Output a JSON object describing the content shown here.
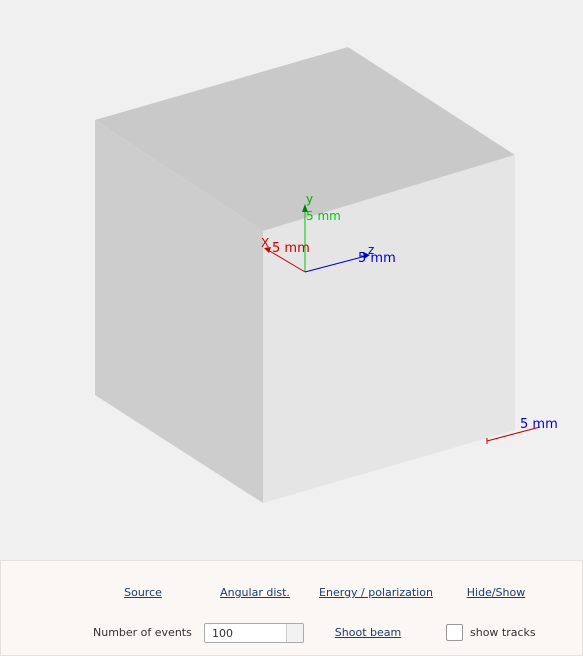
{
  "viewer": {
    "axes": {
      "x": {
        "name": "X",
        "length": "5 mm"
      },
      "y": {
        "name": "y",
        "length": "5 mm"
      },
      "z": {
        "name": "z",
        "length": "5 mm"
      }
    },
    "scale": "5 mm"
  },
  "controls": {
    "links": [
      "Source",
      "Angular dist.",
      "Energy / polarization",
      "Hide/Show"
    ],
    "events_label": "Number of events",
    "events_value": "100",
    "shoot": "Shoot beam",
    "tracks": "show tracks"
  }
}
